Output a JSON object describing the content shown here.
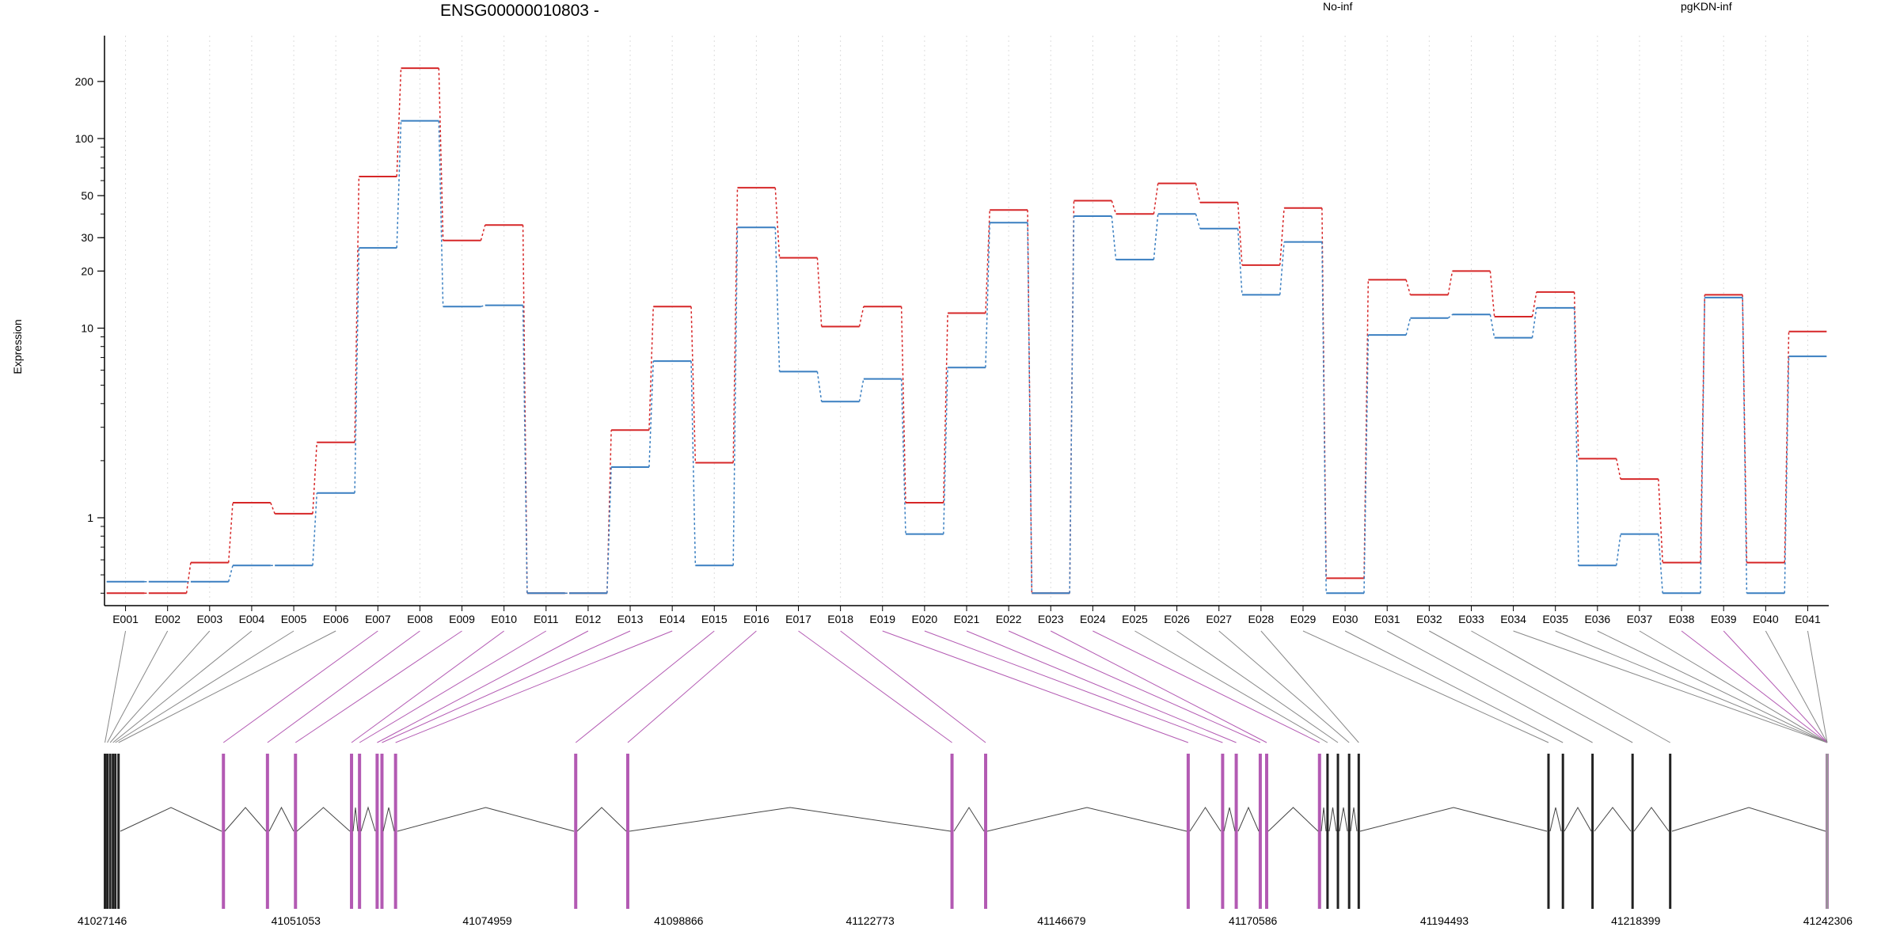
{
  "chart_data": {
    "type": "line",
    "title": "ENSG00000010803 -",
    "ylabel": "Expression",
    "xlabel": "",
    "y_scale": "log",
    "y_ticks": [
      "200",
      "100",
      "50",
      "30",
      "20",
      "10",
      "1"
    ],
    "y_tick_values": [
      200,
      100,
      50,
      30,
      20,
      10,
      1
    ],
    "grid": "vertical-dotted",
    "legend_placement": "top",
    "categories": [
      "E001",
      "E002",
      "E003",
      "E004",
      "E005",
      "E006",
      "E007",
      "E008",
      "E009",
      "E010",
      "E011",
      "E012",
      "E013",
      "E014",
      "E015",
      "E016",
      "E017",
      "E018",
      "E019",
      "E020",
      "E021",
      "E022",
      "E023",
      "E024",
      "E025",
      "E026",
      "E027",
      "E028",
      "E029",
      "E030",
      "E031",
      "E032",
      "E033",
      "E034",
      "E035",
      "E036",
      "E037",
      "E038",
      "E039",
      "E040",
      "E041"
    ],
    "series": [
      {
        "name": "No-inf",
        "color": "#d62728",
        "values": [
          0.4,
          0.4,
          0.58,
          1.2,
          1.05,
          2.5,
          63,
          235,
          29,
          35,
          0.4,
          0.4,
          2.9,
          13,
          1.95,
          55,
          23.5,
          10.2,
          13,
          1.2,
          12,
          42,
          0.4,
          47,
          40,
          58,
          46,
          21.5,
          43,
          0.48,
          18,
          15,
          20,
          11.5,
          15.5,
          2.05,
          1.6,
          0.58,
          15,
          0.58,
          9.6
        ]
      },
      {
        "name": "pgKDN-inf",
        "color": "#3a7fc1",
        "values": [
          0.46,
          0.46,
          0.46,
          0.56,
          0.56,
          1.35,
          26.5,
          124,
          13,
          13.2,
          0.4,
          0.4,
          1.85,
          6.7,
          0.56,
          34,
          5.9,
          4.1,
          5.4,
          0.82,
          6.2,
          36,
          0.4,
          39,
          23,
          40,
          33.5,
          15,
          28.5,
          0.4,
          9.2,
          11.3,
          11.8,
          8.9,
          12.8,
          0.56,
          0.82,
          0.4,
          14.5,
          0.4,
          7.1
        ]
      }
    ],
    "genomic_ticks": [
      "41027146",
      "41051053",
      "41074959",
      "41098866",
      "41122773",
      "41146679",
      "41170586",
      "41194493",
      "41218399",
      "41242306"
    ],
    "genomic_range": [
      41027146,
      41242306
    ],
    "exon_positions": [
      41027200,
      41027500,
      41027850,
      41028200,
      41028500,
      41028900,
      41042000,
      41047500,
      41051000,
      41058000,
      41059000,
      41061200,
      41061800,
      41063500,
      41086000,
      41092500,
      41133000,
      41137200,
      41162500,
      41166800,
      41168500,
      41171500,
      41172300,
      41178900,
      41179900,
      41181200,
      41182600,
      41183800,
      41207500,
      41209300,
      41213000,
      41218000,
      41222700,
      41242306,
      41242306,
      41242306,
      41242306,
      41242306,
      41242306,
      41242306,
      41242306
    ],
    "highlighted_exons": [
      "E007",
      "E008",
      "E009",
      "E010",
      "E011",
      "E012",
      "E013",
      "E014",
      "E015",
      "E016",
      "E017",
      "E018",
      "E019",
      "E020",
      "E021",
      "E022",
      "E023",
      "E024",
      "E038",
      "E039"
    ],
    "highlight_color": "#b35ab3"
  }
}
